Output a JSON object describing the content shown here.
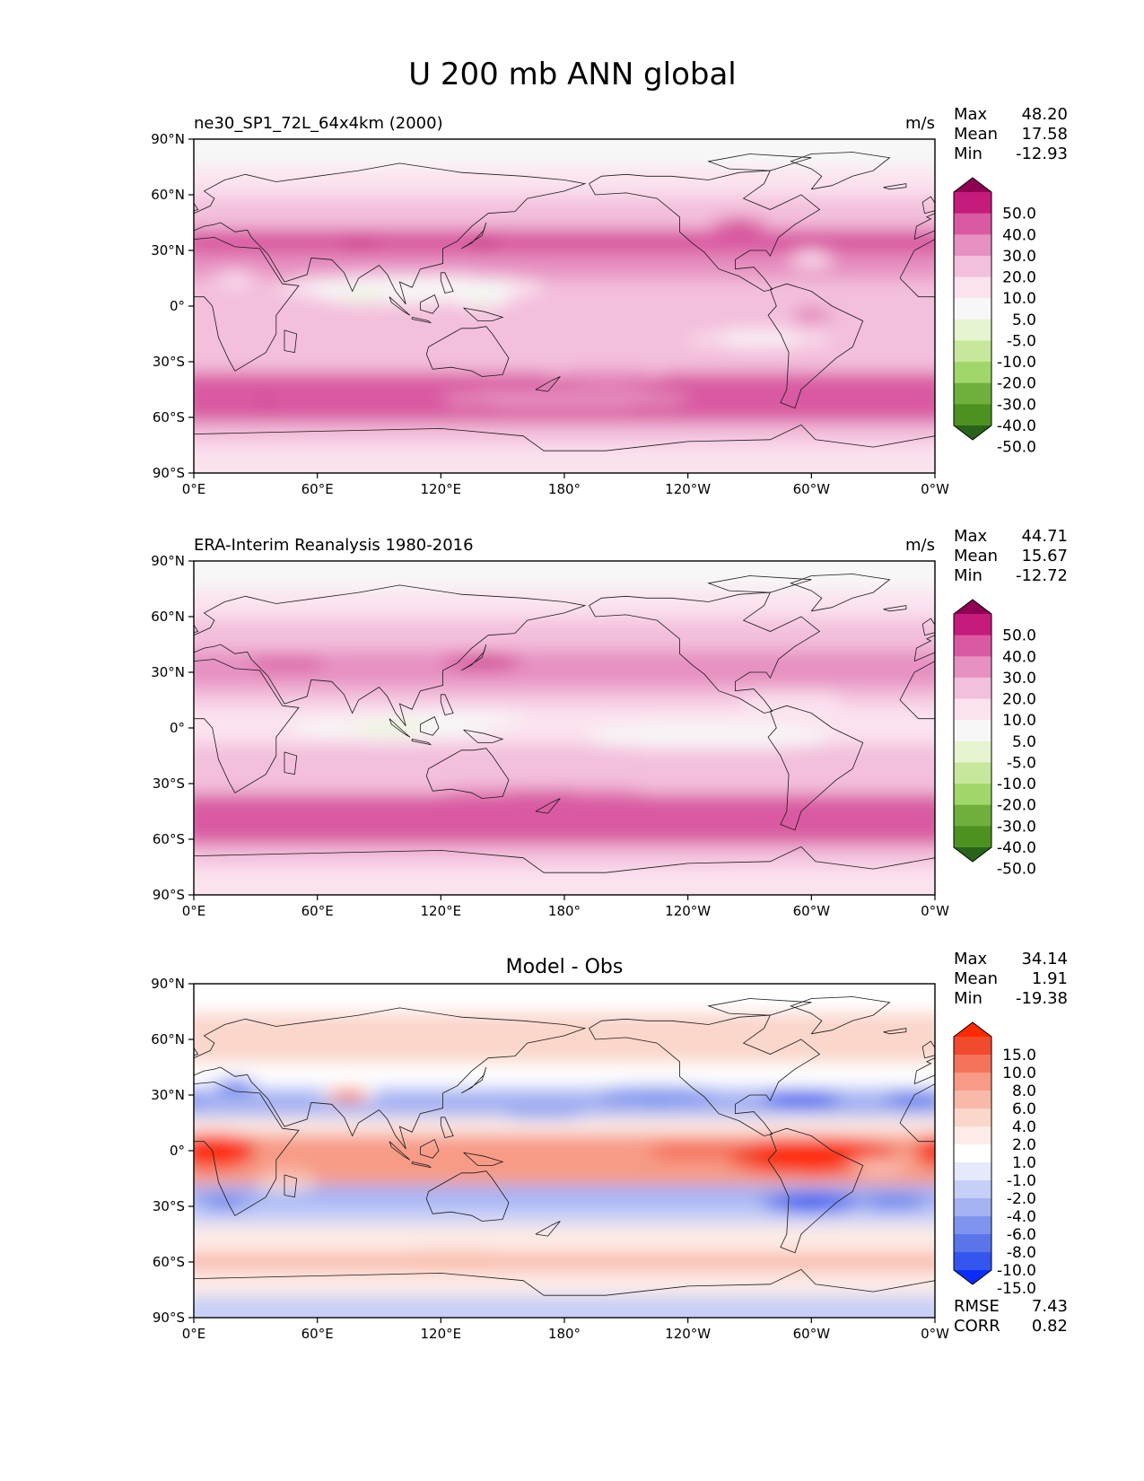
{
  "figure_title": "U 200 mb ANN global",
  "chart_data": [
    {
      "type": "heatmap",
      "name": "model",
      "left_title": "ne30_SP1_72L_64x4km (2000)",
      "center_title": "",
      "units": "m/s",
      "stats": [
        {
          "label": "Max",
          "value": "48.20"
        },
        {
          "label": "Mean",
          "value": "17.58"
        },
        {
          "label": "Min",
          "value": "-12.93"
        }
      ],
      "x_ticks": [
        "0°E",
        "60°E",
        "120°E",
        "180°",
        "120°W",
        "60°W",
        "0°W"
      ],
      "y_ticks": [
        "90°N",
        "60°N",
        "30°N",
        "0°",
        "30°S",
        "60°S",
        "90°S"
      ],
      "xlim": [
        0,
        360
      ],
      "ylim": [
        -90,
        90
      ],
      "colorbar": {
        "labels": [
          "50.0",
          "40.0",
          "30.0",
          "20.0",
          "10.0",
          "5.0",
          "-5.0",
          "-10.0",
          "-20.0",
          "-30.0",
          "-40.0",
          "-50.0"
        ],
        "colors": [
          "#8e0152",
          "#c51b7d",
          "#d95aa2",
          "#e691c1",
          "#f3bfdc",
          "#fbe2ef",
          "#f7f7f7",
          "#e6f5d0",
          "#c7e89c",
          "#a1d76a",
          "#6fb03d",
          "#4d9221",
          "#276419"
        ]
      },
      "field": "model"
    },
    {
      "type": "heatmap",
      "name": "obs",
      "left_title": "ERA-Interim Reanalysis 1980-2016",
      "center_title": "",
      "units": "m/s",
      "stats": [
        {
          "label": "Max",
          "value": "44.71"
        },
        {
          "label": "Mean",
          "value": "15.67"
        },
        {
          "label": "Min",
          "value": "-12.72"
        }
      ],
      "x_ticks": [
        "0°E",
        "60°E",
        "120°E",
        "180°",
        "120°W",
        "60°W",
        "0°W"
      ],
      "y_ticks": [
        "90°N",
        "60°N",
        "30°N",
        "0°",
        "30°S",
        "60°S",
        "90°S"
      ],
      "xlim": [
        0,
        360
      ],
      "ylim": [
        -90,
        90
      ],
      "colorbar": {
        "labels": [
          "50.0",
          "40.0",
          "30.0",
          "20.0",
          "10.0",
          "5.0",
          "-5.0",
          "-10.0",
          "-20.0",
          "-30.0",
          "-40.0",
          "-50.0"
        ],
        "colors": [
          "#8e0152",
          "#c51b7d",
          "#d95aa2",
          "#e691c1",
          "#f3bfdc",
          "#fbe2ef",
          "#f7f7f7",
          "#e6f5d0",
          "#c7e89c",
          "#a1d76a",
          "#6fb03d",
          "#4d9221",
          "#276419"
        ]
      },
      "field": "obs"
    },
    {
      "type": "heatmap",
      "name": "diff",
      "left_title": "",
      "center_title": "Model - Obs",
      "units": "",
      "stats": [
        {
          "label": "Max",
          "value": "34.14"
        },
        {
          "label": "Mean",
          "value": "1.91"
        },
        {
          "label": "Min",
          "value": "-19.38"
        }
      ],
      "bottom_stats": [
        {
          "label": "RMSE",
          "value": "7.43"
        },
        {
          "label": "CORR",
          "value": "0.82"
        }
      ],
      "x_ticks": [
        "0°E",
        "60°E",
        "120°E",
        "180°",
        "120°W",
        "60°W",
        "0°W"
      ],
      "y_ticks": [
        "90°N",
        "60°N",
        "30°N",
        "0°",
        "30°S",
        "60°S",
        "90°S"
      ],
      "xlim": [
        0,
        360
      ],
      "ylim": [
        -90,
        90
      ],
      "colorbar": {
        "labels": [
          "15.0",
          "10.0",
          "8.0",
          "6.0",
          "4.0",
          "2.0",
          "1.0",
          "-1.0",
          "-2.0",
          "-4.0",
          "-6.0",
          "-8.0",
          "-10.0",
          "-15.0"
        ],
        "colors": [
          "#ff2a00",
          "#f24a2f",
          "#f5725b",
          "#f79b86",
          "#f9b9a9",
          "#fbd6cb",
          "#fdebe6",
          "#ffffff",
          "#e5e9fb",
          "#c6cff8",
          "#a5b3f3",
          "#7f94ee",
          "#5a75ea",
          "#3456ef",
          "#0a2dfc"
        ]
      },
      "field": "diff"
    }
  ]
}
